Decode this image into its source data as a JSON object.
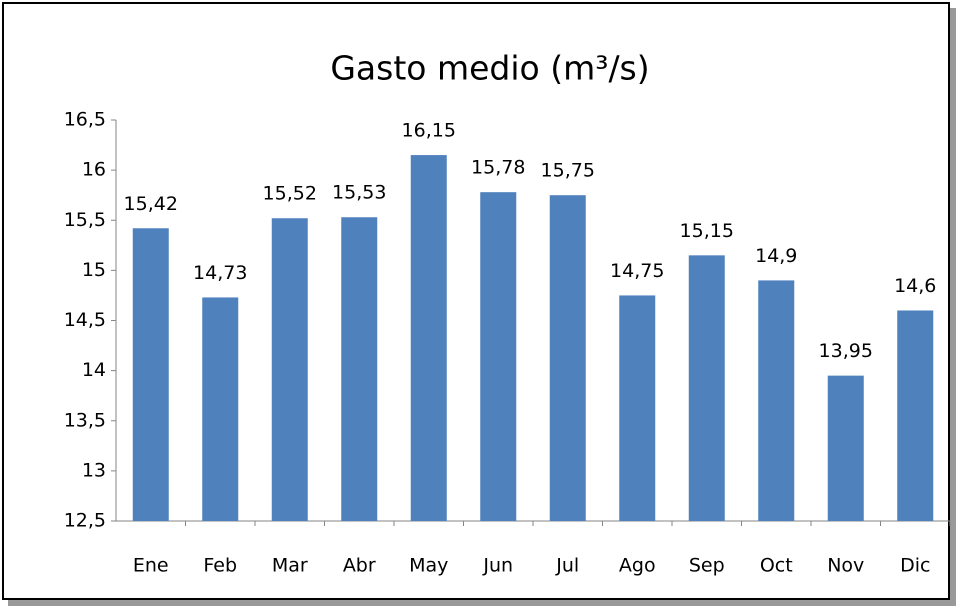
{
  "chart_data": {
    "type": "bar",
    "title": "Gasto medio (m³/s)",
    "categories": [
      "Ene",
      "Feb",
      "Mar",
      "Abr",
      "May",
      "Jun",
      "Jul",
      "Ago",
      "Sep",
      "Oct",
      "Nov",
      "Dic"
    ],
    "values": [
      15.42,
      14.73,
      15.52,
      15.53,
      16.15,
      15.78,
      15.75,
      14.75,
      15.15,
      14.9,
      13.95,
      14.6
    ],
    "value_labels": [
      "15,42",
      "14,73",
      "15,52",
      "15,53",
      "16,15",
      "15,78",
      "15,75",
      "14,75",
      "15,15",
      "14,9",
      "13,95",
      "14,6"
    ],
    "color": "#4f81bd",
    "ylim": [
      12.5,
      16.5
    ],
    "yticks": [
      {
        "value": 12.5,
        "label": "12,5"
      },
      13,
      {
        "value": 13.5,
        "label": "13,5"
      },
      14,
      {
        "value": 14.5,
        "label": "14,5"
      },
      15,
      {
        "value": 15.5,
        "label": "15,5"
      },
      16,
      {
        "value": 16.5,
        "label": "16,5"
      }
    ],
    "grid": false
  }
}
